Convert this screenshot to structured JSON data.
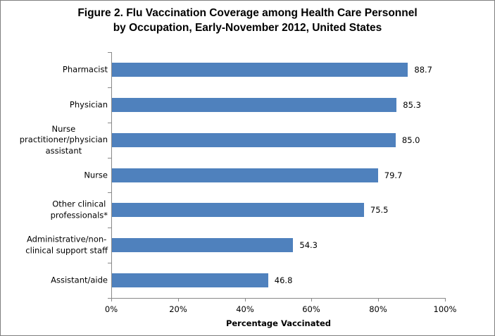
{
  "figure": {
    "title_line1": "Figure 2. Flu Vaccination Coverage among Health Care Personnel",
    "title_line2": "by Occupation, Early-November 2012, United States"
  },
  "chart_data": {
    "type": "bar",
    "orientation": "horizontal",
    "title": "Figure 2. Flu Vaccination Coverage among Health Care Personnel by Occupation, Early-November 2012, United States",
    "categories": [
      "Pharmacist",
      "Physician",
      "Nurse practitioner/physician assistant",
      "Nurse",
      "Other clinical professionals*",
      "Administrative/non-clinical support staff",
      "Assistant/aide"
    ],
    "category_display": [
      "Pharmacist",
      "Physician",
      "Nurse\npractitioner/physician\nassistant",
      "Nurse",
      "Other clinical\nprofessionals*",
      "Administrative/non-\nclinical support staff",
      "Assistant/aide"
    ],
    "values": [
      88.7,
      85.3,
      85.0,
      79.7,
      75.5,
      54.3,
      46.8
    ],
    "data_labels": [
      "88.7",
      "85.3",
      "85.0",
      "79.7",
      "75.5",
      "54.3",
      "46.8"
    ],
    "xlabel": "Percentage Vaccinated",
    "x_tick_labels": [
      "0%",
      "20%",
      "40%",
      "60%",
      "80%",
      "100%"
    ],
    "xlim": [
      0,
      100
    ],
    "grid": false,
    "legend": false,
    "bar_color": "#4f81bd",
    "axis_color": "#898989",
    "text_color": "#000000"
  }
}
